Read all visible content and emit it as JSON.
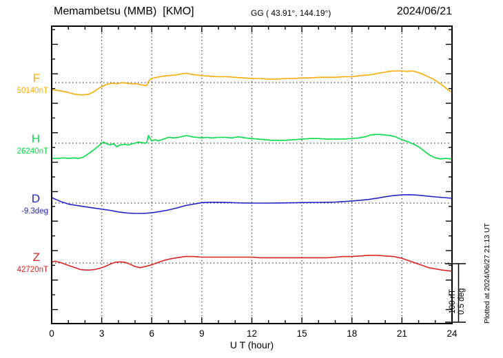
{
  "header": {
    "station": "Memambetsu (MMB)  [KMO]",
    "coords": "GG ( 43.91°, 144.19°)",
    "date": "2024/06/21"
  },
  "x_axis": {
    "label": "U T (hour)",
    "tick_labels": [
      "0",
      "3",
      "6",
      "9",
      "12",
      "15",
      "18",
      "21",
      "24"
    ],
    "min_hour": 0,
    "max_hour": 24,
    "major_step_hours": 3,
    "minor_step_hours": 1
  },
  "scale_bar": {
    "line1": "100 nT",
    "line2": "0.5 deg"
  },
  "plot_note": "Plotted at 2024/06/27 21:13 UT",
  "chart_data": {
    "type": "line",
    "title": "Memambetsu (MMB) [KMO] magnetogram for 2024/06/21",
    "xlabel": "U T (hour)",
    "x_range_hours": [
      0,
      24
    ],
    "gridline_hours": [
      3,
      6,
      9,
      12,
      15,
      18,
      21
    ],
    "grid_style": "dotted",
    "scale": {
      "nT_per_division": 100,
      "deg_per_division": 0.5
    },
    "series": [
      {
        "name": "F",
        "unit": "nT",
        "baseline_value": 50140,
        "baseline_label": "50140nT",
        "color": "#ffaa00",
        "points": [
          [
            0,
            -12
          ],
          [
            0.3,
            -13
          ],
          [
            0.7,
            -15
          ],
          [
            1,
            -17
          ],
          [
            1.4,
            -20
          ],
          [
            1.8,
            -21
          ],
          [
            2.2,
            -20
          ],
          [
            2.5,
            -16
          ],
          [
            2.8,
            -10
          ],
          [
            3,
            -7
          ],
          [
            3.3,
            -3
          ],
          [
            3.6,
            -1
          ],
          [
            3.9,
            -2
          ],
          [
            4.2,
            0
          ],
          [
            4.5,
            -1
          ],
          [
            4.8,
            -2
          ],
          [
            5.1,
            -2
          ],
          [
            5.4,
            -4
          ],
          [
            5.7,
            -5
          ],
          [
            5.8,
            2
          ],
          [
            6,
            7
          ],
          [
            6.3,
            9
          ],
          [
            6.7,
            11
          ],
          [
            7,
            12
          ],
          [
            7.4,
            13
          ],
          [
            7.8,
            15
          ],
          [
            8.1,
            16
          ],
          [
            8.4,
            14
          ],
          [
            8.7,
            13
          ],
          [
            9,
            12
          ],
          [
            9.5,
            11
          ],
          [
            10,
            10
          ],
          [
            10.5,
            10
          ],
          [
            11,
            9
          ],
          [
            11.5,
            8
          ],
          [
            12,
            7
          ],
          [
            12.5,
            7
          ],
          [
            13,
            6
          ],
          [
            13.5,
            6
          ],
          [
            14,
            7
          ],
          [
            14.5,
            7
          ],
          [
            15,
            8
          ],
          [
            15.5,
            8
          ],
          [
            16,
            9
          ],
          [
            16.5,
            9
          ],
          [
            17,
            9
          ],
          [
            17.5,
            10
          ],
          [
            18,
            10
          ],
          [
            18.5,
            12
          ],
          [
            19,
            13
          ],
          [
            19.4,
            15
          ],
          [
            19.8,
            17
          ],
          [
            20.2,
            19
          ],
          [
            20.6,
            20
          ],
          [
            21,
            20
          ],
          [
            21.3,
            19
          ],
          [
            21.6,
            20
          ],
          [
            21.9,
            18
          ],
          [
            22.2,
            15
          ],
          [
            22.5,
            11
          ],
          [
            22.8,
            7
          ],
          [
            23.1,
            2
          ],
          [
            23.4,
            -4
          ],
          [
            23.7,
            -11
          ],
          [
            24,
            -17
          ]
        ]
      },
      {
        "name": "H",
        "unit": "nT",
        "baseline_value": 26240,
        "baseline_label": "26240nT",
        "color": "#00dd44",
        "points": [
          [
            0,
            -26
          ],
          [
            0.4,
            -26
          ],
          [
            0.7,
            -25
          ],
          [
            1,
            -26
          ],
          [
            1.3,
            -25
          ],
          [
            1.6,
            -26
          ],
          [
            1.9,
            -24
          ],
          [
            2.2,
            -18
          ],
          [
            2.5,
            -12
          ],
          [
            2.8,
            -5
          ],
          [
            3,
            0
          ],
          [
            3.1,
            2
          ],
          [
            3.3,
            -1
          ],
          [
            3.5,
            -3
          ],
          [
            3.7,
            -1
          ],
          [
            3.9,
            -6
          ],
          [
            4.1,
            -3
          ],
          [
            4.4,
            -2
          ],
          [
            4.6,
            -3
          ],
          [
            4.8,
            -1
          ],
          [
            5,
            0
          ],
          [
            5.2,
            2
          ],
          [
            5.4,
            1
          ],
          [
            5.6,
            0
          ],
          [
            5.7,
            1
          ],
          [
            5.8,
            13
          ],
          [
            5.9,
            8
          ],
          [
            6,
            4
          ],
          [
            6.2,
            6
          ],
          [
            6.4,
            4
          ],
          [
            6.6,
            6
          ],
          [
            6.8,
            8
          ],
          [
            7,
            10
          ],
          [
            7.3,
            9
          ],
          [
            7.6,
            10
          ],
          [
            7.9,
            12
          ],
          [
            8.1,
            13
          ],
          [
            8.4,
            11
          ],
          [
            8.7,
            10
          ],
          [
            9,
            9
          ],
          [
            9.3,
            10
          ],
          [
            9.6,
            9
          ],
          [
            10,
            10
          ],
          [
            10.4,
            10
          ],
          [
            10.8,
            9
          ],
          [
            11.2,
            11
          ],
          [
            11.6,
            9
          ],
          [
            12,
            8
          ],
          [
            12.4,
            7
          ],
          [
            12.8,
            6
          ],
          [
            13.2,
            5
          ],
          [
            13.6,
            5
          ],
          [
            14,
            5
          ],
          [
            14.5,
            6
          ],
          [
            15,
            7
          ],
          [
            15.5,
            8
          ],
          [
            16,
            8
          ],
          [
            16.5,
            7
          ],
          [
            17,
            7
          ],
          [
            17.5,
            7
          ],
          [
            18,
            8
          ],
          [
            18.4,
            9
          ],
          [
            18.8,
            11
          ],
          [
            19.1,
            14
          ],
          [
            19.4,
            15
          ],
          [
            19.7,
            15
          ],
          [
            20,
            14
          ],
          [
            20.3,
            13
          ],
          [
            20.6,
            11
          ],
          [
            21,
            6
          ],
          [
            21.4,
            2
          ],
          [
            21.8,
            -3
          ],
          [
            22.1,
            -8
          ],
          [
            22.4,
            -15
          ],
          [
            22.7,
            -21
          ],
          [
            23,
            -25
          ],
          [
            23.3,
            -27
          ],
          [
            23.6,
            -26
          ],
          [
            24,
            -27
          ]
        ]
      },
      {
        "name": "D",
        "unit": "deg",
        "baseline_value": -9.3,
        "baseline_label": "-9.3deg",
        "color": "#2222cc",
        "points": [
          [
            0,
            0.047
          ],
          [
            0.3,
            0.028
          ],
          [
            0.6,
            0.01
          ],
          [
            1,
            -0.008
          ],
          [
            1.5,
            -0.02
          ],
          [
            2,
            -0.031
          ],
          [
            2.5,
            -0.042
          ],
          [
            3,
            -0.052
          ],
          [
            3.5,
            -0.062
          ],
          [
            4,
            -0.075
          ],
          [
            4.5,
            -0.084
          ],
          [
            5,
            -0.088
          ],
          [
            5.5,
            -0.088
          ],
          [
            6,
            -0.083
          ],
          [
            6.5,
            -0.072
          ],
          [
            7,
            -0.059
          ],
          [
            7.5,
            -0.042
          ],
          [
            8,
            -0.022
          ],
          [
            8.5,
            -0.009
          ],
          [
            9,
            0.004
          ],
          [
            9.5,
            0.007
          ],
          [
            10,
            0.007
          ],
          [
            10.5,
            0.005
          ],
          [
            11,
            0.003
          ],
          [
            11.5,
            0.001
          ],
          [
            12,
            0
          ],
          [
            12.5,
            0
          ],
          [
            13,
            0
          ],
          [
            13.5,
            0.001
          ],
          [
            14,
            0.002
          ],
          [
            14.5,
            0.003
          ],
          [
            15,
            0.004
          ],
          [
            15.5,
            0.005
          ],
          [
            16,
            0.006
          ],
          [
            16.5,
            0.007
          ],
          [
            17,
            0.009
          ],
          [
            17.5,
            0.013
          ],
          [
            18,
            0.018
          ],
          [
            18.5,
            0.024
          ],
          [
            19,
            0.031
          ],
          [
            19.5,
            0.042
          ],
          [
            20,
            0.054
          ],
          [
            20.5,
            0.064
          ],
          [
            21,
            0.07
          ],
          [
            21.5,
            0.072
          ],
          [
            22,
            0.067
          ],
          [
            22.5,
            0.06
          ],
          [
            23,
            0.053
          ],
          [
            23.5,
            0.047
          ],
          [
            24,
            0.042
          ]
        ]
      },
      {
        "name": "Z",
        "unit": "nT",
        "baseline_value": 42720,
        "baseline_label": "42720nT",
        "color": "#dd2222",
        "points": [
          [
            0,
            2
          ],
          [
            0.2,
            3
          ],
          [
            0.5,
            1
          ],
          [
            0.8,
            -2
          ],
          [
            1.1,
            -5
          ],
          [
            1.4,
            -8
          ],
          [
            1.7,
            -11
          ],
          [
            2,
            -12
          ],
          [
            2.3,
            -12
          ],
          [
            2.6,
            -11
          ],
          [
            2.9,
            -9
          ],
          [
            3.2,
            -6
          ],
          [
            3.5,
            -2
          ],
          [
            3.8,
            1
          ],
          [
            4.1,
            2
          ],
          [
            4.4,
            1
          ],
          [
            4.7,
            -2
          ],
          [
            5,
            -6
          ],
          [
            5.3,
            -8
          ],
          [
            5.6,
            -6
          ],
          [
            5.9,
            -4
          ],
          [
            6.2,
            -1
          ],
          [
            6.5,
            2
          ],
          [
            6.8,
            5
          ],
          [
            7.1,
            7
          ],
          [
            7.5,
            9
          ],
          [
            8,
            11
          ],
          [
            8.5,
            11
          ],
          [
            9,
            10
          ],
          [
            9.5,
            10
          ],
          [
            10,
            10
          ],
          [
            10.5,
            10
          ],
          [
            11,
            10
          ],
          [
            11.5,
            10
          ],
          [
            12,
            10
          ],
          [
            12.5,
            9
          ],
          [
            13,
            9
          ],
          [
            13.5,
            9
          ],
          [
            14,
            9
          ],
          [
            14.5,
            9
          ],
          [
            15,
            9
          ],
          [
            15.5,
            9
          ],
          [
            16,
            9
          ],
          [
            16.5,
            9
          ],
          [
            17,
            10
          ],
          [
            17.5,
            11
          ],
          [
            18,
            11
          ],
          [
            18.5,
            12
          ],
          [
            19,
            13
          ],
          [
            19.5,
            13
          ],
          [
            20,
            12
          ],
          [
            20.5,
            11
          ],
          [
            21,
            8
          ],
          [
            21.4,
            4
          ],
          [
            21.8,
            0
          ],
          [
            22.2,
            -4
          ],
          [
            22.6,
            -8
          ],
          [
            23,
            -10
          ],
          [
            23.4,
            -12
          ],
          [
            23.7,
            -13
          ],
          [
            24,
            -14
          ]
        ]
      }
    ]
  }
}
